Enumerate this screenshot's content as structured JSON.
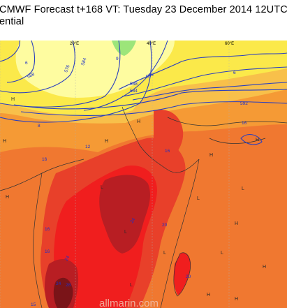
{
  "header": {
    "line1": "CMWF Forecast t+168 VT: Tuesday 23 December 2014 12UTC",
    "line2": "ential"
  },
  "map": {
    "longitude_labels": [
      "20°E",
      "40°E",
      "60°E"
    ],
    "contour_labels": [
      "6",
      "588",
      "576",
      "584",
      "9",
      "588",
      "584",
      "596",
      "6",
      "592",
      "8",
      "16",
      "12",
      "16",
      "16",
      "20",
      "24",
      "20",
      "16",
      "16",
      "24",
      "24",
      "28",
      "20",
      "24",
      "15",
      "16"
    ],
    "pressure_markers": [
      "H",
      "H",
      "H",
      "H",
      "H",
      "H",
      "L",
      "L",
      "L",
      "L",
      "H",
      "L",
      "H",
      "L",
      "H",
      "L",
      "H",
      "H"
    ],
    "watermark": "allmarin.com",
    "colors": {
      "pale_yellow": "#fefca0",
      "yellow": "#fbe94a",
      "light_orange": "#f8c04a",
      "orange": "#f59a35",
      "dark_orange": "#f07830",
      "red": "#e8402a",
      "bright_red": "#f01e1e",
      "dark_red": "#b81e23",
      "maroon": "#7a1418",
      "green": "#9ce57a",
      "contour": "#2a3fbf"
    }
  }
}
